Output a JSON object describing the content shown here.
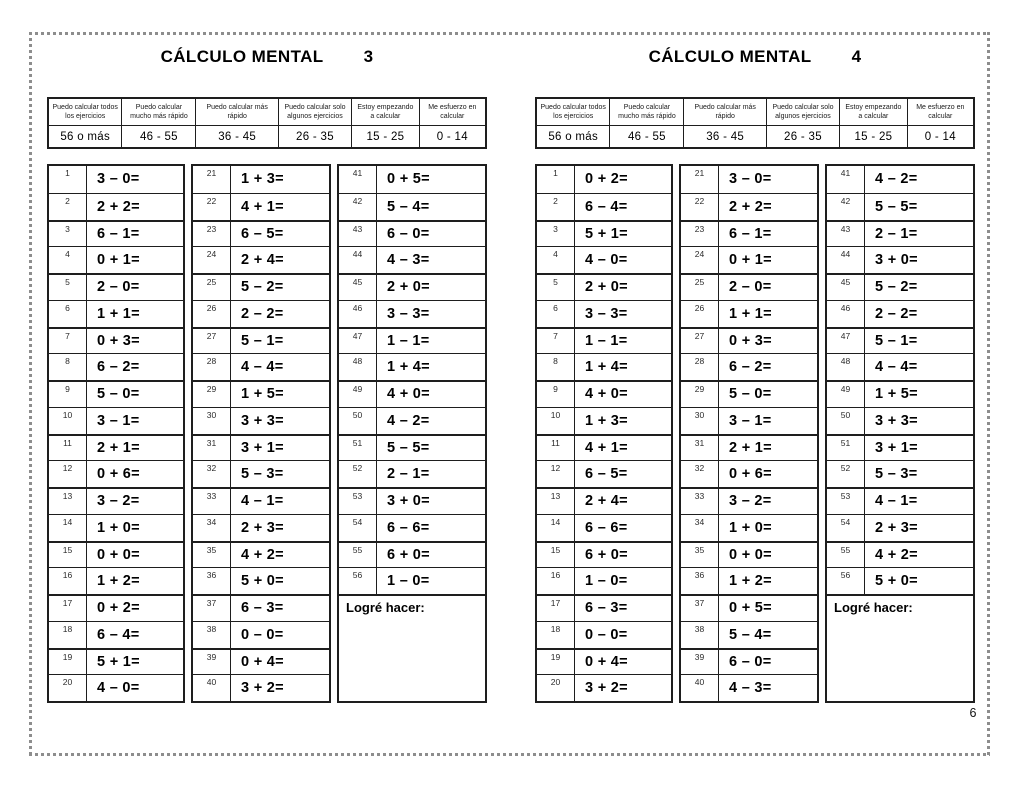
{
  "page_number": "6",
  "colors": {
    "frame_dash": "#8d8d8d",
    "table_line": "#1e1e1e",
    "text": "#000000"
  },
  "score_legend": {
    "categories": [
      {
        "label": "Puedo calcular todos los ejercicios",
        "range": "56 o más"
      },
      {
        "label": "Puedo calcular mucho más rápido",
        "range": "46 - 55"
      },
      {
        "label": "Puedo calcular más rápido",
        "range": "36 - 45"
      },
      {
        "label": "Puedo calcular solo algunos ejercicios",
        "range": "26 - 35"
      },
      {
        "label": "Estoy empezando a calcular",
        "range": "15 - 25"
      },
      {
        "label": "Me esfuerzo en calcular",
        "range": "0 - 14"
      }
    ]
  },
  "worksheets": [
    {
      "title": "CÁLCULO MENTAL",
      "number": "3",
      "result_label": "Logré hacer:",
      "exercises": [
        "3 – 0=",
        "2 + 2=",
        "6 – 1=",
        "0 + 1=",
        "2 – 0=",
        "1 + 1=",
        "0 + 3=",
        "6 – 2=",
        "5 – 0=",
        "3 – 1=",
        "2 + 1=",
        "0 + 6=",
        "3 – 2=",
        "1 + 0=",
        "0 + 0=",
        "1 + 2=",
        "0 + 2=",
        "6 – 4=",
        "5 + 1=",
        "4 – 0=",
        "1 + 3=",
        "4 + 1=",
        "6 – 5=",
        "2 + 4=",
        "5 – 2=",
        "2 – 2=",
        "5 – 1=",
        "4 – 4=",
        "1 + 5=",
        "3 + 3=",
        "3 + 1=",
        "5 – 3=",
        "4 – 1=",
        "2 + 3=",
        "4 + 2=",
        "5 + 0=",
        "6 – 3=",
        "0 – 0=",
        "0 + 4=",
        "3 + 2=",
        "0 + 5=",
        "5 – 4=",
        "6 – 0=",
        "4 – 3=",
        "2 + 0=",
        "3 – 3=",
        "1 – 1=",
        "1 + 4=",
        "4 + 0=",
        "4 – 2=",
        "5 – 5=",
        "2 – 1=",
        "3 + 0=",
        "6 – 6=",
        "6 + 0=",
        "1 – 0="
      ]
    },
    {
      "title": "CÁLCULO MENTAL",
      "number": "4",
      "result_label": "Logré hacer:",
      "exercises": [
        "0 + 2=",
        "6 – 4=",
        "5 + 1=",
        "4 – 0=",
        "2 + 0=",
        "3 – 3=",
        "1 – 1=",
        "1 + 4=",
        "4 + 0=",
        "1 + 3=",
        "4 + 1=",
        "6 – 5=",
        "2 + 4=",
        "6 – 6=",
        "6 + 0=",
        "1 – 0=",
        "6 – 3=",
        "0 – 0=",
        "0 + 4=",
        "3 + 2=",
        "3 – 0=",
        "2 + 2=",
        "6 – 1=",
        "0 + 1=",
        "2 – 0=",
        "1 + 1=",
        "0 + 3=",
        "6 – 2=",
        "5 – 0=",
        "3 – 1=",
        "2 + 1=",
        "0 + 6=",
        "3 – 2=",
        "1 + 0=",
        "0 + 0=",
        "1 + 2=",
        "0 + 5=",
        "5 – 4=",
        "6 – 0=",
        "4 – 3=",
        "4 – 2=",
        "5 – 5=",
        "2 – 1=",
        "3 + 0=",
        "5 – 2=",
        "2 – 2=",
        "5 – 1=",
        "4 – 4=",
        "1 + 5=",
        "3 + 3=",
        "3 + 1=",
        "5 – 3=",
        "4 – 1=",
        "2 + 3=",
        "4 + 2=",
        "5 + 0="
      ]
    }
  ]
}
